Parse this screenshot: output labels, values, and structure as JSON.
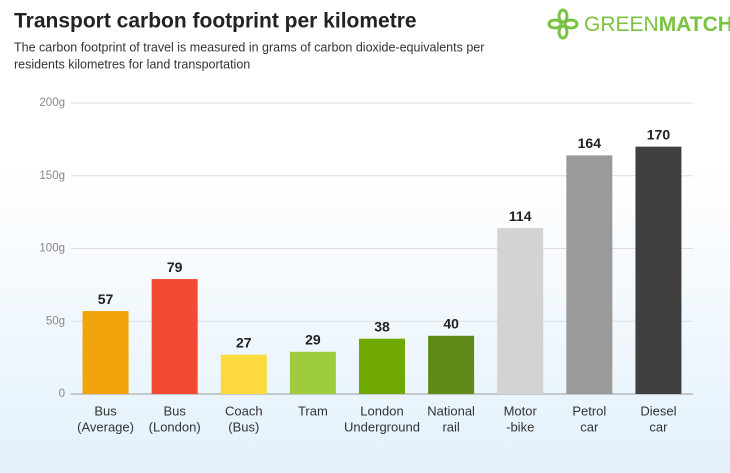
{
  "chart_data": {
    "type": "bar",
    "title": "Transport carbon footprint per kilometre",
    "subtitle": [
      "The carbon footprint of travel is measured in grams of carbon dioxide-equivalents per",
      "residents kilometres for land transportation"
    ],
    "logo": {
      "light": "GREEN",
      "bold": "MATCH"
    },
    "categories": [
      [
        "Bus",
        "(Average)"
      ],
      [
        "Bus",
        "(London)"
      ],
      [
        "Coach",
        "(Bus)"
      ],
      [
        "Tram"
      ],
      [
        "London",
        "Underground"
      ],
      [
        "National",
        "rail"
      ],
      [
        "Motor",
        "-bike"
      ],
      [
        "Petrol",
        "car"
      ],
      [
        "Diesel",
        "car"
      ]
    ],
    "values": [
      57,
      79,
      27,
      29,
      38,
      40,
      114,
      164,
      170
    ],
    "colors": [
      "#f0a30a",
      "#f24b32",
      "#fcd93c",
      "#9fcb3f",
      "#6fa800",
      "#5f8a1a",
      "#d3d3d3",
      "#9a9a9a",
      "#404040"
    ],
    "ylim": [
      0,
      200
    ],
    "yticks": [
      0,
      {
        "value": 50,
        "label": "50g"
      },
      {
        "value": 100,
        "label": "100g"
      },
      {
        "value": 150,
        "label": "150g"
      },
      {
        "value": 200,
        "label": "200g"
      }
    ],
    "grid": true
  }
}
